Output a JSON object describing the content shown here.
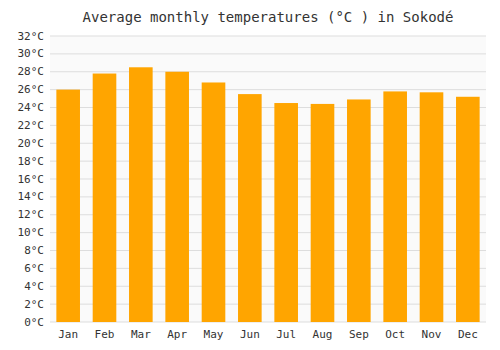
{
  "chart_data": {
    "type": "bar",
    "title": "Average monthly temperatures (°C ) in Sokodé",
    "categories": [
      "Jan",
      "Feb",
      "Mar",
      "Apr",
      "May",
      "Jun",
      "Jul",
      "Aug",
      "Sep",
      "Oct",
      "Nov",
      "Dec"
    ],
    "values": [
      26.0,
      27.8,
      28.5,
      28.0,
      26.8,
      25.5,
      24.5,
      24.4,
      24.9,
      25.8,
      25.7,
      25.2
    ],
    "color": "#FFA500",
    "ylim": [
      0,
      32
    ],
    "yticks": [
      {
        "value": 0,
        "label": "0°C"
      },
      {
        "value": 2,
        "label": "2°C"
      },
      {
        "value": 4,
        "label": "4°C"
      },
      {
        "value": 6,
        "label": "6°C"
      },
      {
        "value": 8,
        "label": "8°C"
      },
      {
        "value": 10,
        "label": "10°C"
      },
      {
        "value": 12,
        "label": "12°C"
      },
      {
        "value": 14,
        "label": "14°C"
      },
      {
        "value": 16,
        "label": "16°C"
      },
      {
        "value": 18,
        "label": "18°C"
      },
      {
        "value": 20,
        "label": "20°C"
      },
      {
        "value": 22,
        "label": "22°C"
      },
      {
        "value": 24,
        "label": "24°C"
      },
      {
        "value": 26,
        "label": "26°C"
      },
      {
        "value": 28,
        "label": "28°C"
      },
      {
        "value": 30,
        "label": "30°C"
      },
      {
        "value": 32,
        "label": "32°C"
      }
    ],
    "grid": true
  }
}
